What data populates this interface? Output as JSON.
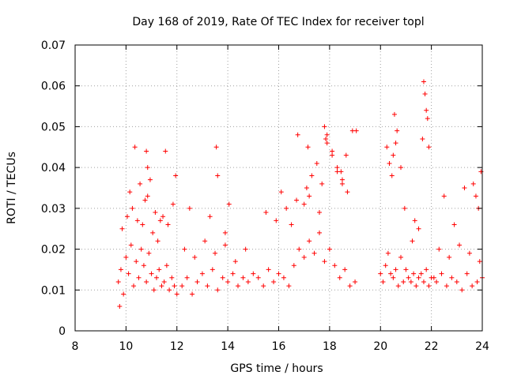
{
  "chart_data": {
    "type": "scatter",
    "title": "Day 168 of 2019, Rate Of TEC Index for receiver topl",
    "xlabel": "GPS time / hours",
    "ylabel": "ROTI / TECUs",
    "xlim": [
      8,
      24
    ],
    "ylim": [
      0,
      0.07
    ],
    "xticks": [
      8,
      10,
      12,
      14,
      16,
      18,
      20,
      22,
      24
    ],
    "xtick_labels": [
      "8",
      "10",
      "12",
      "14",
      "16",
      "18",
      "20",
      "22",
      "24"
    ],
    "yticks": [
      0,
      0.01,
      0.02,
      0.03,
      0.04,
      0.05,
      0.06,
      0.07
    ],
    "ytick_labels": [
      "0",
      "0.01",
      "0.02",
      "0.03",
      "0.04",
      "0.05",
      "0.06",
      "0.07"
    ],
    "grid": true,
    "marker": "+",
    "color": "#ff0000",
    "series": [
      {
        "name": "ROTI",
        "x": [
          9.7,
          9.8,
          9.9,
          10.0,
          10.1,
          10.2,
          10.3,
          10.4,
          10.5,
          10.6,
          10.7,
          10.8,
          10.9,
          11.0,
          11.1,
          11.2,
          11.3,
          11.4,
          11.5,
          11.6,
          11.7,
          11.8,
          11.9,
          12.0,
          9.75,
          9.85,
          10.05,
          10.25,
          10.45,
          10.65,
          10.85,
          11.05,
          11.25,
          11.45,
          11.65,
          11.85,
          10.35,
          10.55,
          10.75,
          10.95,
          11.15,
          11.35,
          10.15,
          10.8,
          10.85,
          11.55,
          11.95,
          12.2,
          12.4,
          12.6,
          12.8,
          13.0,
          13.2,
          13.4,
          13.6,
          13.8,
          14.0,
          14.2,
          14.4,
          14.6,
          14.8,
          15.0,
          12.3,
          12.7,
          13.1,
          13.5,
          13.9,
          14.3,
          14.7,
          13.3,
          13.55,
          13.6,
          14.05,
          12.5,
          13.9,
          15.2,
          15.4,
          15.6,
          15.8,
          16.0,
          16.2,
          16.4,
          16.6,
          16.8,
          17.0,
          17.2,
          17.4,
          17.6,
          17.8,
          18.0,
          18.2,
          18.4,
          18.6,
          18.8,
          19.0,
          15.5,
          15.9,
          16.3,
          16.7,
          17.1,
          17.3,
          17.5,
          17.7,
          17.9,
          18.1,
          18.3,
          18.5,
          17.0,
          17.2,
          17.6,
          17.8,
          17.9,
          18.1,
          18.3,
          18.5,
          18.7,
          18.9,
          16.75,
          17.15,
          17.85,
          18.65,
          19.05,
          16.1,
          16.5,
          18.45,
          20.0,
          20.1,
          20.2,
          20.3,
          20.4,
          20.5,
          20.6,
          20.7,
          20.8,
          20.9,
          21.0,
          21.1,
          21.2,
          21.3,
          21.4,
          21.5,
          21.6,
          21.7,
          21.8,
          21.9,
          22.0,
          20.25,
          20.35,
          20.45,
          20.55,
          20.65,
          20.5,
          20.6,
          20.95,
          21.25,
          21.7,
          21.75,
          21.8,
          21.85,
          21.65,
          21.9,
          22.1,
          22.2,
          22.4,
          22.6,
          22.8,
          23.0,
          23.2,
          23.4,
          23.6,
          23.8,
          24.0,
          22.3,
          22.7,
          23.1,
          23.5,
          23.9,
          22.5,
          23.3,
          23.65,
          23.75,
          23.85,
          23.95,
          22.9,
          21.5,
          21.35,
          20.8
        ],
        "y": [
          0.012,
          0.015,
          0.009,
          0.018,
          0.014,
          0.021,
          0.011,
          0.017,
          0.013,
          0.02,
          0.016,
          0.012,
          0.019,
          0.014,
          0.01,
          0.013,
          0.015,
          0.011,
          0.012,
          0.016,
          0.01,
          0.013,
          0.011,
          0.009,
          0.006,
          0.025,
          0.028,
          0.03,
          0.027,
          0.026,
          0.033,
          0.024,
          0.022,
          0.028,
          0.026,
          0.031,
          0.045,
          0.036,
          0.032,
          0.037,
          0.029,
          0.027,
          0.034,
          0.044,
          0.04,
          0.044,
          0.038,
          0.011,
          0.013,
          0.009,
          0.012,
          0.014,
          0.011,
          0.015,
          0.01,
          0.013,
          0.012,
          0.014,
          0.011,
          0.013,
          0.012,
          0.014,
          0.02,
          0.018,
          0.022,
          0.019,
          0.021,
          0.017,
          0.02,
          0.028,
          0.045,
          0.038,
          0.031,
          0.03,
          0.024,
          0.013,
          0.011,
          0.015,
          0.012,
          0.014,
          0.013,
          0.011,
          0.016,
          0.02,
          0.018,
          0.022,
          0.019,
          0.024,
          0.017,
          0.02,
          0.016,
          0.013,
          0.015,
          0.011,
          0.012,
          0.029,
          0.027,
          0.03,
          0.032,
          0.035,
          0.038,
          0.041,
          0.036,
          0.046,
          0.043,
          0.039,
          0.037,
          0.031,
          0.033,
          0.029,
          0.05,
          0.048,
          0.044,
          0.04,
          0.036,
          0.034,
          0.049,
          0.048,
          0.045,
          0.047,
          0.043,
          0.049,
          0.034,
          0.026,
          0.039,
          0.014,
          0.012,
          0.016,
          0.019,
          0.014,
          0.013,
          0.015,
          0.011,
          0.018,
          0.012,
          0.015,
          0.013,
          0.012,
          0.014,
          0.011,
          0.013,
          0.014,
          0.012,
          0.015,
          0.011,
          0.013,
          0.045,
          0.041,
          0.038,
          0.053,
          0.049,
          0.043,
          0.046,
          0.03,
          0.022,
          0.061,
          0.058,
          0.054,
          0.052,
          0.047,
          0.045,
          0.013,
          0.012,
          0.014,
          0.011,
          0.013,
          0.012,
          0.01,
          0.014,
          0.011,
          0.012,
          0.013,
          0.02,
          0.018,
          0.021,
          0.019,
          0.017,
          0.033,
          0.035,
          0.036,
          0.033,
          0.03,
          0.039,
          0.026,
          0.025,
          0.027,
          0.04
        ]
      }
    ]
  }
}
